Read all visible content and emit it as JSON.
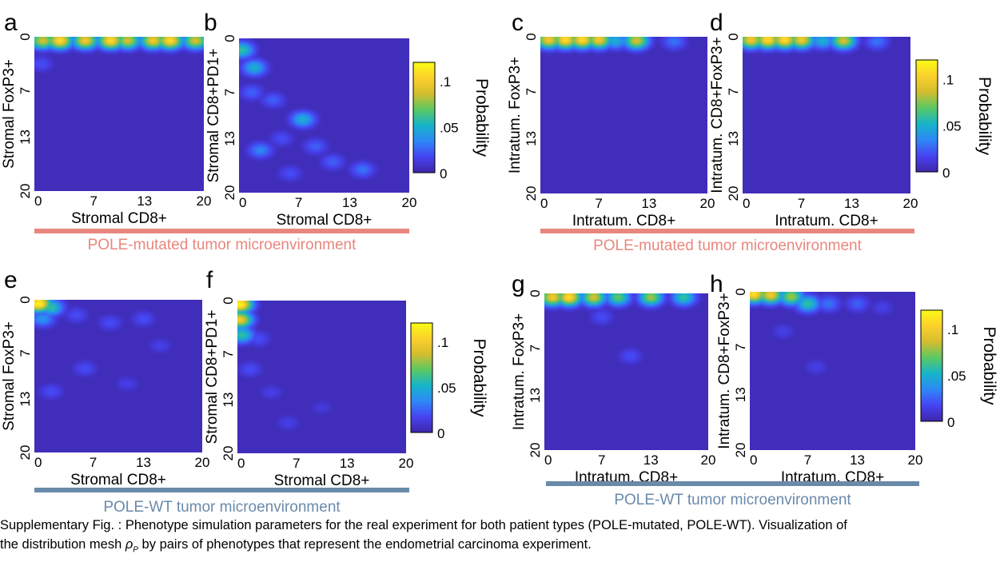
{
  "colors": {
    "pole_mutated": "#e8877e",
    "pole_wt": "#6a8aaa",
    "colormap": [
      "#3e26a8",
      "#4743f2",
      "#2e87f7",
      "#16b4c9",
      "#5ac864",
      "#d3bd2f",
      "#fcd02c",
      "#f9fb15"
    ]
  },
  "groups": [
    {
      "id": "mutated-left",
      "label": "POLE-mutated tumor microenvironment",
      "color": "#e8877e"
    },
    {
      "id": "mutated-right",
      "label": "POLE-mutated tumor microenvironment",
      "color": "#e8877e"
    },
    {
      "id": "wt-left",
      "label": "POLE-WT tumor microenvironment",
      "color": "#6a8aaa"
    },
    {
      "id": "wt-right",
      "label": "POLE-WT tumor microenvironment",
      "color": "#6a8aaa"
    }
  ],
  "colorbars": [
    {
      "label": "Probability",
      "ticks": [
        ".1",
        ".05",
        "0"
      ],
      "tick_values": [
        0.1,
        0.05,
        0
      ],
      "range": [
        0,
        0.12
      ]
    },
    {
      "label": "Probability",
      "ticks": [
        ".1",
        ".05",
        "0"
      ],
      "tick_values": [
        0.1,
        0.05,
        0
      ],
      "range": [
        0,
        0.12
      ]
    },
    {
      "label": "Probability",
      "ticks": [
        ".1",
        ".05",
        "0"
      ],
      "tick_values": [
        0.1,
        0.05,
        0
      ],
      "range": [
        0,
        0.12
      ]
    },
    {
      "label": "Probability",
      "ticks": [
        ".1",
        ".05",
        "0"
      ],
      "tick_values": [
        0.1,
        0.05,
        0
      ],
      "range": [
        0,
        0.12
      ]
    }
  ],
  "chart_data": [
    {
      "panel": "a",
      "type": "heatmap",
      "xlabel": "Stromal CD8+",
      "ylabel": "Stromal FoxP3+",
      "xticks": [
        "0",
        "7",
        "13",
        "20"
      ],
      "yticks": [
        "0",
        "7",
        "13",
        "20"
      ],
      "xlim": [
        0,
        20
      ],
      "ylim": [
        0,
        20
      ],
      "zlim": [
        0,
        0.12
      ],
      "peaks": [
        {
          "x": 1,
          "y": 0.5,
          "v": 0.09
        },
        {
          "x": 3,
          "y": 0.5,
          "v": 0.11
        },
        {
          "x": 6,
          "y": 0.5,
          "v": 0.1
        },
        {
          "x": 9,
          "y": 0.5,
          "v": 0.11
        },
        {
          "x": 11,
          "y": 0.5,
          "v": 0.09
        },
        {
          "x": 14,
          "y": 0.5,
          "v": 0.1
        },
        {
          "x": 16,
          "y": 0.5,
          "v": 0.11
        },
        {
          "x": 19,
          "y": 0.5,
          "v": 0.09
        },
        {
          "x": 0.8,
          "y": 3.5,
          "v": 0.02
        }
      ]
    },
    {
      "panel": "b",
      "type": "heatmap",
      "xlabel": "Stromal CD8+",
      "ylabel": "Stromal CD8+PD1+",
      "xticks": [
        "0",
        "7",
        "13",
        "20"
      ],
      "yticks": [
        "0",
        "7",
        "13",
        "20"
      ],
      "xlim": [
        0,
        20
      ],
      "ylim": [
        0,
        20
      ],
      "zlim": [
        0,
        0.12
      ],
      "peaks": [
        {
          "x": 0.3,
          "y": 1.5,
          "v": 0.06
        },
        {
          "x": 1.8,
          "y": 3.8,
          "v": 0.05
        },
        {
          "x": 1.5,
          "y": 7,
          "v": 0.025
        },
        {
          "x": 4,
          "y": 8,
          "v": 0.025
        },
        {
          "x": 7.5,
          "y": 10.5,
          "v": 0.05
        },
        {
          "x": 5,
          "y": 13,
          "v": 0.02
        },
        {
          "x": 2.5,
          "y": 14.5,
          "v": 0.035
        },
        {
          "x": 9,
          "y": 14,
          "v": 0.025
        },
        {
          "x": 11,
          "y": 16,
          "v": 0.025
        },
        {
          "x": 14.5,
          "y": 17,
          "v": 0.03
        },
        {
          "x": 6,
          "y": 17.5,
          "v": 0.02
        }
      ]
    },
    {
      "panel": "c",
      "type": "heatmap",
      "xlabel": "Intratum. CD8+",
      "ylabel": "Intratum. FoxP3+",
      "xticks": [
        "0",
        "7",
        "13",
        "20"
      ],
      "yticks": [
        "0",
        "7",
        "13",
        "20"
      ],
      "xlim": [
        0,
        20
      ],
      "ylim": [
        0,
        20
      ],
      "zlim": [
        0,
        0.12
      ],
      "peaks": [
        {
          "x": 1,
          "y": 0.4,
          "v": 0.1
        },
        {
          "x": 3,
          "y": 0.4,
          "v": 0.11
        },
        {
          "x": 5,
          "y": 0.4,
          "v": 0.11
        },
        {
          "x": 7,
          "y": 0.4,
          "v": 0.1
        },
        {
          "x": 11.5,
          "y": 0.5,
          "v": 0.09
        },
        {
          "x": 9,
          "y": 0.5,
          "v": 0.05
        },
        {
          "x": 16,
          "y": 0.6,
          "v": 0.03
        }
      ]
    },
    {
      "panel": "d",
      "type": "heatmap",
      "xlabel": "Intratum. CD8+",
      "ylabel": "Intratum. CD8+FoxP3+",
      "xticks": [
        "0",
        "7",
        "13",
        "20"
      ],
      "yticks": [
        "0",
        "7",
        "13",
        "20"
      ],
      "xlim": [
        0,
        20
      ],
      "ylim": [
        0,
        20
      ],
      "zlim": [
        0,
        0.12
      ],
      "peaks": [
        {
          "x": 1,
          "y": 0.4,
          "v": 0.1
        },
        {
          "x": 3,
          "y": 0.4,
          "v": 0.11
        },
        {
          "x": 5,
          "y": 0.4,
          "v": 0.11
        },
        {
          "x": 7,
          "y": 0.4,
          "v": 0.1
        },
        {
          "x": 12,
          "y": 0.5,
          "v": 0.09
        },
        {
          "x": 9.5,
          "y": 0.5,
          "v": 0.05
        },
        {
          "x": 16,
          "y": 0.6,
          "v": 0.03
        }
      ]
    },
    {
      "panel": "e",
      "type": "heatmap",
      "xlabel": "Stromal CD8+",
      "ylabel": "Stromal FoxP3+",
      "xticks": [
        "0",
        "7",
        "13",
        "20"
      ],
      "yticks": [
        "0",
        "7",
        "13",
        "20"
      ],
      "xlim": [
        0,
        20
      ],
      "ylim": [
        0,
        20
      ],
      "zlim": [
        0,
        0.12
      ],
      "peaks": [
        {
          "x": 0.5,
          "y": 0.5,
          "v": 0.12
        },
        {
          "x": 2,
          "y": 1,
          "v": 0.06
        },
        {
          "x": 1,
          "y": 2.5,
          "v": 0.04
        },
        {
          "x": 5,
          "y": 2,
          "v": 0.02
        },
        {
          "x": 9,
          "y": 3,
          "v": 0.02
        },
        {
          "x": 13,
          "y": 2.5,
          "v": 0.02
        },
        {
          "x": 6,
          "y": 9,
          "v": 0.02
        },
        {
          "x": 2,
          "y": 12,
          "v": 0.02
        },
        {
          "x": 11,
          "y": 11,
          "v": 0.015
        },
        {
          "x": 15,
          "y": 6,
          "v": 0.015
        }
      ]
    },
    {
      "panel": "f",
      "type": "heatmap",
      "xlabel": "Stromal CD8+",
      "ylabel": "Stromal CD8+PD1+",
      "xticks": [
        "0",
        "7",
        "13",
        "20"
      ],
      "yticks": [
        "0",
        "7",
        "13",
        "20"
      ],
      "xlim": [
        0,
        20
      ],
      "ylim": [
        0,
        20
      ],
      "zlim": [
        0,
        0.12
      ],
      "peaks": [
        {
          "x": 0.3,
          "y": 0.5,
          "v": 0.12
        },
        {
          "x": 0.3,
          "y": 2.5,
          "v": 0.1
        },
        {
          "x": 0.5,
          "y": 4.5,
          "v": 0.06
        },
        {
          "x": 2.5,
          "y": 5,
          "v": 0.02
        },
        {
          "x": 1.5,
          "y": 9,
          "v": 0.02
        },
        {
          "x": 4,
          "y": 12,
          "v": 0.015
        },
        {
          "x": 6,
          "y": 16,
          "v": 0.015
        },
        {
          "x": 10,
          "y": 14,
          "v": 0.012
        }
      ]
    },
    {
      "panel": "g",
      "type": "heatmap",
      "xlabel": "Intratum. CD8+",
      "ylabel": "Intratum. FoxP3+",
      "xticks": [
        "0",
        "7",
        "13",
        "20"
      ],
      "yticks": [
        "0",
        "7",
        "13",
        "20"
      ],
      "xlim": [
        0,
        20
      ],
      "ylim": [
        0,
        20
      ],
      "zlim": [
        0,
        0.12
      ],
      "peaks": [
        {
          "x": 1,
          "y": 0.5,
          "v": 0.1
        },
        {
          "x": 3,
          "y": 0.5,
          "v": 0.11
        },
        {
          "x": 6,
          "y": 0.5,
          "v": 0.09
        },
        {
          "x": 9,
          "y": 0.5,
          "v": 0.07
        },
        {
          "x": 13,
          "y": 0.5,
          "v": 0.08
        },
        {
          "x": 17,
          "y": 0.5,
          "v": 0.06
        },
        {
          "x": 7,
          "y": 3,
          "v": 0.02
        },
        {
          "x": 10.5,
          "y": 8,
          "v": 0.02
        }
      ]
    },
    {
      "panel": "h",
      "type": "heatmap",
      "xlabel": "Intratum. CD8+",
      "ylabel": "Intratum. CD8+FoxP3+",
      "xticks": [
        "0",
        "7",
        "13",
        "20"
      ],
      "yticks": [
        "0",
        "7",
        "13",
        "20"
      ],
      "xlim": [
        0,
        20
      ],
      "ylim": [
        0,
        20
      ],
      "zlim": [
        0,
        0.12
      ],
      "peaks": [
        {
          "x": 0.5,
          "y": 0.3,
          "v": 0.11
        },
        {
          "x": 2.5,
          "y": 0.4,
          "v": 0.1
        },
        {
          "x": 5,
          "y": 0.6,
          "v": 0.08
        },
        {
          "x": 7,
          "y": 1.5,
          "v": 0.06
        },
        {
          "x": 9.5,
          "y": 1.5,
          "v": 0.03
        },
        {
          "x": 13,
          "y": 1.5,
          "v": 0.025
        },
        {
          "x": 16,
          "y": 2,
          "v": 0.015
        },
        {
          "x": 4,
          "y": 5,
          "v": 0.015
        },
        {
          "x": 8,
          "y": 9.5,
          "v": 0.015
        }
      ]
    }
  ],
  "caption": {
    "line1": "Supplementary Fig. : Phenotype simulation parameters for the real experiment for both patient types (POLE-mutated, POLE-WT). Visualization of",
    "line2_prefix": "the distribution mesh ",
    "line2_symbol": "ρ",
    "line2_subscript": "P",
    "line2_suffix": " by pairs of phenotypes that represent the endometrial carcinoma experiment."
  }
}
